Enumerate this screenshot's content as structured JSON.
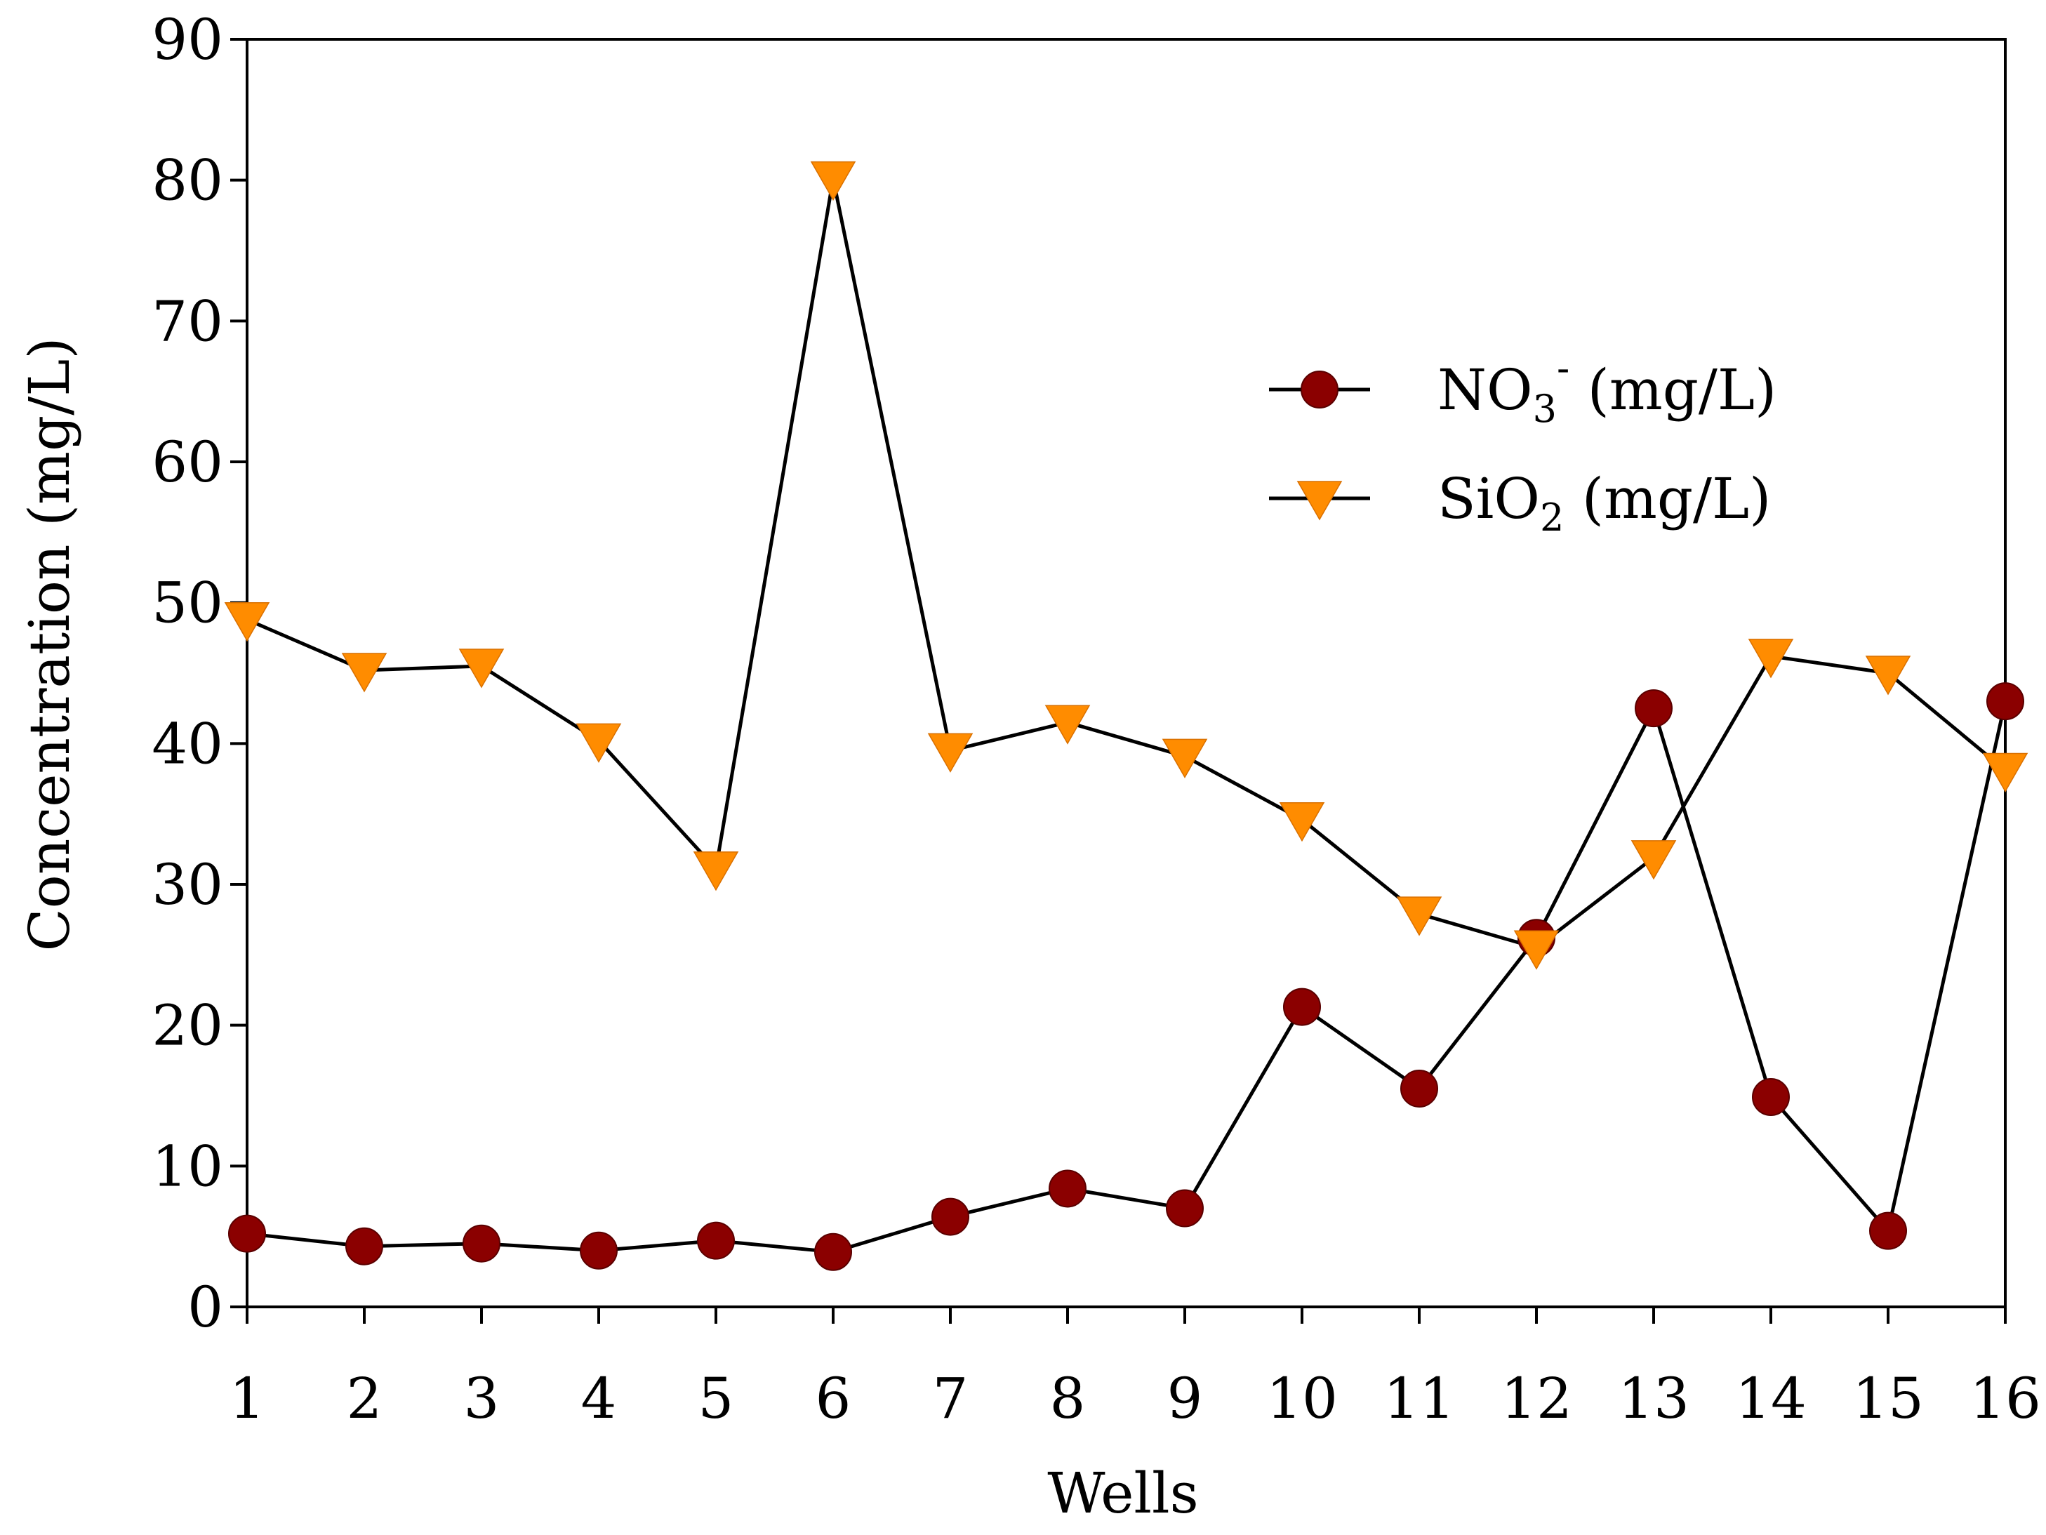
{
  "chart_data": {
    "type": "line",
    "xlabel": "Wells",
    "ylabel": "Concentration (mg/L)",
    "x": [
      1,
      2,
      3,
      4,
      5,
      6,
      7,
      8,
      9,
      10,
      11,
      12,
      13,
      14,
      15,
      16
    ],
    "xlim": [
      1,
      16
    ],
    "ylim": [
      0,
      90
    ],
    "y_ticks": [
      0,
      10,
      20,
      30,
      40,
      50,
      60,
      70,
      80,
      90
    ],
    "grid": false,
    "legend_position": "right",
    "series": [
      {
        "name": "NO3- (mg/L)",
        "label_main": "NO",
        "label_sub": "3",
        "label_sup": "-",
        "label_rest": " (mg/L)",
        "marker": "circle",
        "color": "#8b0000",
        "values": [
          5.2,
          4.3,
          4.5,
          4.0,
          4.7,
          3.9,
          6.4,
          8.4,
          7.0,
          21.3,
          15.5,
          26.2,
          42.5,
          14.9,
          5.4,
          43.0
        ]
      },
      {
        "name": "SiO2 (mg/L)",
        "label_main": "SiO",
        "label_sub": "2",
        "label_sup": "",
        "label_rest": " (mg/L)",
        "marker": "triangle-down",
        "color": "#ff8c00",
        "values": [
          48.8,
          45.2,
          45.5,
          40.2,
          31.1,
          80.1,
          39.5,
          41.5,
          39.1,
          34.6,
          27.9,
          25.5,
          31.9,
          46.2,
          45.0,
          38.1
        ]
      }
    ]
  }
}
